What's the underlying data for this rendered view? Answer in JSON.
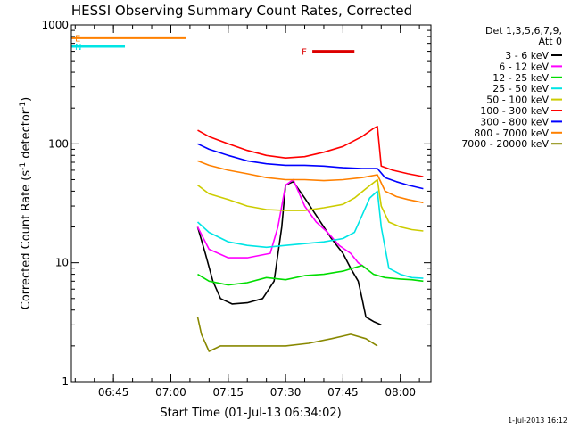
{
  "chart_data": {
    "type": "line",
    "title": "HESSI Observing Summary Count Rates, Corrected",
    "xlabel": "Start Time (01-Jul-13 06:34:02)",
    "ylabel": "Corrected Count Rate (s⁻¹ detector⁻¹)",
    "ylabel_parts": {
      "main": "Corrected Count Rate (s",
      "sup1": "-1",
      "mid": " detector",
      "sup2": "-1",
      "close": ")"
    },
    "scale_y": "log",
    "xlim": [
      "06:34",
      "08:08"
    ],
    "ylim": [
      1,
      1000
    ],
    "x_ticks": [
      "06:45",
      "07:00",
      "07:15",
      "07:30",
      "07:45",
      "08:00"
    ],
    "y_ticks": [
      "1",
      "10",
      "100",
      "1000"
    ],
    "footer_date": "1-Jul-2013 16:12",
    "legend": {
      "placement": "right",
      "header1": "Det 1,3,5,6,7,9,",
      "header2": "Att 0"
    },
    "series": [
      {
        "name": "3 - 6 keV",
        "color": "#000000",
        "points": [
          [
            "07:07",
            20
          ],
          [
            "07:09",
            12
          ],
          [
            "07:11",
            7
          ],
          [
            "07:13",
            5
          ],
          [
            "07:16",
            4.5
          ],
          [
            "07:20",
            4.6
          ],
          [
            "07:24",
            5
          ],
          [
            "07:27",
            7
          ],
          [
            "07:29",
            20
          ],
          [
            "07:30",
            45
          ],
          [
            "07:32",
            48
          ],
          [
            "07:35",
            35
          ],
          [
            "07:38",
            25
          ],
          [
            "07:42",
            16
          ],
          [
            "07:45",
            12
          ],
          [
            "07:47",
            9
          ],
          [
            "07:49",
            7
          ],
          [
            "07:50",
            5
          ],
          [
            "07:51",
            3.5
          ],
          [
            "07:53",
            3.2
          ],
          [
            "07:55",
            3
          ]
        ]
      },
      {
        "name": "6 - 12 keV",
        "color": "#ff00ff",
        "points": [
          [
            "07:07",
            20
          ],
          [
            "07:10",
            13
          ],
          [
            "07:15",
            11
          ],
          [
            "07:20",
            11
          ],
          [
            "07:26",
            12
          ],
          [
            "07:28",
            20
          ],
          [
            "07:30",
            45
          ],
          [
            "07:32",
            50
          ],
          [
            "07:35",
            30
          ],
          [
            "07:38",
            22
          ],
          [
            "07:41",
            18
          ],
          [
            "07:44",
            14
          ],
          [
            "07:47",
            12
          ],
          [
            "07:49",
            10
          ],
          [
            "07:51",
            9
          ]
        ]
      },
      {
        "name": "12 - 25 keV",
        "color": "#00dd00",
        "points": [
          [
            "07:07",
            8
          ],
          [
            "07:10",
            7
          ],
          [
            "07:15",
            6.5
          ],
          [
            "07:20",
            6.8
          ],
          [
            "07:25",
            7.5
          ],
          [
            "07:30",
            7.2
          ],
          [
            "07:35",
            7.8
          ],
          [
            "07:40",
            8
          ],
          [
            "07:45",
            8.5
          ],
          [
            "07:50",
            9.5
          ],
          [
            "07:53",
            8
          ],
          [
            "07:56",
            7.5
          ],
          [
            "08:00",
            7.3
          ],
          [
            "08:03",
            7.2
          ],
          [
            "08:06",
            7
          ]
        ]
      },
      {
        "name": "25 - 50 keV",
        "color": "#00e5e5",
        "points": [
          [
            "07:07",
            22
          ],
          [
            "07:10",
            18
          ],
          [
            "07:15",
            15
          ],
          [
            "07:20",
            14
          ],
          [
            "07:25",
            13.5
          ],
          [
            "07:30",
            14
          ],
          [
            "07:35",
            14.5
          ],
          [
            "07:40",
            15
          ],
          [
            "07:45",
            16
          ],
          [
            "07:48",
            18
          ],
          [
            "07:50",
            25
          ],
          [
            "07:52",
            35
          ],
          [
            "07:54",
            40
          ],
          [
            "07:55",
            20
          ],
          [
            "07:57",
            9
          ],
          [
            "08:00",
            8
          ],
          [
            "08:03",
            7.5
          ],
          [
            "08:06",
            7.4
          ]
        ]
      },
      {
        "name": "50 - 100 keV",
        "color": "#cccc00",
        "points": [
          [
            "07:07",
            45
          ],
          [
            "07:10",
            38
          ],
          [
            "07:15",
            34
          ],
          [
            "07:20",
            30
          ],
          [
            "07:25",
            28
          ],
          [
            "07:30",
            27.5
          ],
          [
            "07:35",
            27.5
          ],
          [
            "07:40",
            29
          ],
          [
            "07:45",
            31
          ],
          [
            "07:48",
            35
          ],
          [
            "07:51",
            42
          ],
          [
            "07:54",
            50
          ],
          [
            "07:55",
            30
          ],
          [
            "07:57",
            22
          ],
          [
            "08:00",
            20
          ],
          [
            "08:03",
            19
          ],
          [
            "08:06",
            18.5
          ]
        ]
      },
      {
        "name": "100 - 300 keV",
        "color": "#ff0000",
        "points": [
          [
            "07:07",
            130
          ],
          [
            "07:10",
            115
          ],
          [
            "07:15",
            100
          ],
          [
            "07:20",
            88
          ],
          [
            "07:25",
            80
          ],
          [
            "07:30",
            76
          ],
          [
            "07:35",
            78
          ],
          [
            "07:40",
            85
          ],
          [
            "07:45",
            95
          ],
          [
            "07:50",
            115
          ],
          [
            "07:53",
            135
          ],
          [
            "07:54",
            140
          ],
          [
            "07:55",
            65
          ],
          [
            "07:58",
            60
          ],
          [
            "08:02",
            56
          ],
          [
            "08:06",
            53
          ]
        ]
      },
      {
        "name": "300 - 800 keV",
        "color": "#0000ff",
        "points": [
          [
            "07:07",
            100
          ],
          [
            "07:10",
            90
          ],
          [
            "07:15",
            80
          ],
          [
            "07:20",
            72
          ],
          [
            "07:25",
            68
          ],
          [
            "07:30",
            66
          ],
          [
            "07:35",
            66
          ],
          [
            "07:40",
            65
          ],
          [
            "07:45",
            63
          ],
          [
            "07:50",
            62
          ],
          [
            "07:54",
            62
          ],
          [
            "07:56",
            52
          ],
          [
            "07:59",
            48
          ],
          [
            "08:02",
            45
          ],
          [
            "08:06",
            42
          ]
        ]
      },
      {
        "name": "800 - 7000 keV",
        "color": "#ff8000",
        "points": [
          [
            "07:07",
            72
          ],
          [
            "07:10",
            66
          ],
          [
            "07:15",
            60
          ],
          [
            "07:20",
            56
          ],
          [
            "07:25",
            52
          ],
          [
            "07:30",
            50
          ],
          [
            "07:35",
            50
          ],
          [
            "07:40",
            49
          ],
          [
            "07:45",
            50
          ],
          [
            "07:50",
            52
          ],
          [
            "07:54",
            55
          ],
          [
            "07:56",
            40
          ],
          [
            "07:59",
            36
          ],
          [
            "08:02",
            34
          ],
          [
            "08:06",
            32
          ]
        ]
      },
      {
        "name": "7000 - 20000 keV",
        "color": "#888800",
        "points": [
          [
            "07:07",
            3.5
          ],
          [
            "07:08",
            2.5
          ],
          [
            "07:10",
            1.8
          ],
          [
            "07:13",
            2
          ],
          [
            "07:18",
            2
          ],
          [
            "07:24",
            2
          ],
          [
            "07:30",
            2
          ],
          [
            "07:36",
            2.1
          ],
          [
            "07:42",
            2.3
          ],
          [
            "07:47",
            2.5
          ],
          [
            "07:51",
            2.3
          ],
          [
            "07:54",
            2
          ]
        ]
      }
    ],
    "annotations": [
      {
        "label": "F",
        "color": "#dd0000",
        "start": "07:37",
        "end": "07:48",
        "y": 600
      },
      {
        "label": "N",
        "color": "#00e5e5",
        "start": "06:34",
        "end": "06:48",
        "y": 660
      },
      {
        "label": "E",
        "color": "#ff8000",
        "start": "06:34",
        "end": "07:04",
        "y": 780
      }
    ]
  }
}
